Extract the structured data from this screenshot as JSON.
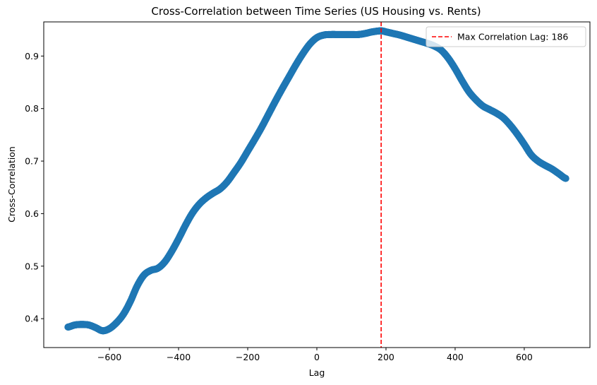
{
  "chart_data": {
    "type": "scatter",
    "title": "Cross-Correlation between Time Series (US Housing vs. Rents)",
    "xlabel": "Lag",
    "ylabel": "Cross-Correlation",
    "xlim": [
      -790,
      790
    ],
    "ylim": [
      0.345,
      0.965
    ],
    "x_ticks": [
      -600,
      -400,
      -200,
      0,
      200,
      400,
      600
    ],
    "x_tick_labels": [
      "−600",
      "−400",
      "−200",
      "0",
      "200",
      "400",
      "600"
    ],
    "y_ticks": [
      0.4,
      0.5,
      0.6,
      0.7,
      0.8,
      0.9
    ],
    "y_tick_labels": [
      "0.4",
      "0.5",
      "0.6",
      "0.7",
      "0.8",
      "0.9"
    ],
    "grid": false,
    "legend_position": "top-right",
    "series": [
      {
        "color": "#1f77b4",
        "marker": "circle",
        "curve": [
          [
            -720,
            0.384
          ],
          [
            -700,
            0.388
          ],
          [
            -680,
            0.389
          ],
          [
            -660,
            0.388
          ],
          [
            -640,
            0.383
          ],
          [
            -620,
            0.377
          ],
          [
            -600,
            0.381
          ],
          [
            -580,
            0.392
          ],
          [
            -560,
            0.408
          ],
          [
            -540,
            0.432
          ],
          [
            -520,
            0.462
          ],
          [
            -500,
            0.483
          ],
          [
            -480,
            0.492
          ],
          [
            -460,
            0.496
          ],
          [
            -440,
            0.508
          ],
          [
            -420,
            0.528
          ],
          [
            -400,
            0.552
          ],
          [
            -380,
            0.578
          ],
          [
            -360,
            0.601
          ],
          [
            -340,
            0.618
          ],
          [
            -320,
            0.63
          ],
          [
            -300,
            0.639
          ],
          [
            -280,
            0.647
          ],
          [
            -260,
            0.66
          ],
          [
            -240,
            0.678
          ],
          [
            -220,
            0.697
          ],
          [
            -200,
            0.719
          ],
          [
            -180,
            0.741
          ],
          [
            -160,
            0.764
          ],
          [
            -140,
            0.789
          ],
          [
            -120,
            0.814
          ],
          [
            -100,
            0.838
          ],
          [
            -80,
            0.861
          ],
          [
            -60,
            0.884
          ],
          [
            -40,
            0.905
          ],
          [
            -20,
            0.923
          ],
          [
            0,
            0.935
          ],
          [
            20,
            0.94
          ],
          [
            40,
            0.941
          ],
          [
            60,
            0.941
          ],
          [
            80,
            0.941
          ],
          [
            100,
            0.941
          ],
          [
            120,
            0.941
          ],
          [
            140,
            0.943
          ],
          [
            160,
            0.946
          ],
          [
            186,
            0.948
          ],
          [
            200,
            0.946
          ],
          [
            220,
            0.943
          ],
          [
            240,
            0.94
          ],
          [
            260,
            0.936
          ],
          [
            280,
            0.932
          ],
          [
            300,
            0.928
          ],
          [
            320,
            0.924
          ],
          [
            340,
            0.919
          ],
          [
            360,
            0.911
          ],
          [
            380,
            0.896
          ],
          [
            400,
            0.876
          ],
          [
            420,
            0.853
          ],
          [
            440,
            0.832
          ],
          [
            460,
            0.817
          ],
          [
            480,
            0.805
          ],
          [
            500,
            0.798
          ],
          [
            520,
            0.791
          ],
          [
            540,
            0.782
          ],
          [
            560,
            0.768
          ],
          [
            580,
            0.751
          ],
          [
            600,
            0.732
          ],
          [
            620,
            0.712
          ],
          [
            640,
            0.7
          ],
          [
            660,
            0.692
          ],
          [
            680,
            0.685
          ],
          [
            700,
            0.676
          ],
          [
            720,
            0.667
          ]
        ]
      }
    ],
    "vline": {
      "x": 186,
      "color": "#ff0000",
      "style": "dashed",
      "label": "Max Correlation Lag: 186"
    }
  }
}
